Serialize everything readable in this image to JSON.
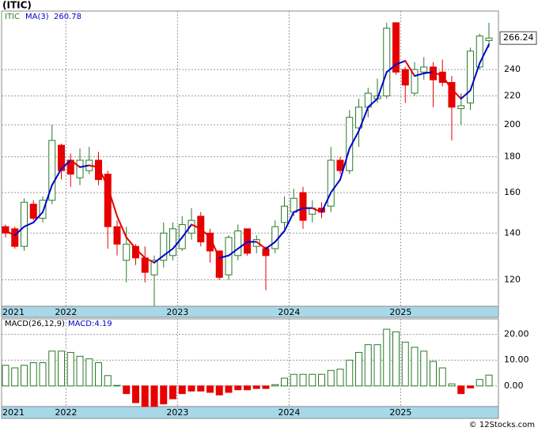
{
  "chart_data": [
    {
      "type": "candlestick",
      "title": "(ITIC)",
      "ticker": "ITIC",
      "ma_label": "MA(3)",
      "yscale": "log",
      "ylim": [
        110,
        291
      ],
      "yticks": [
        120,
        140,
        160,
        180,
        200,
        220,
        240
      ],
      "grid": true,
      "up_color": "#2a7a2a",
      "down_color": "#e60000",
      "ma_up_color": "#0000cc",
      "ma_down_color": "#e60000",
      "categories": [
        "2021",
        null,
        null,
        null,
        null,
        null,
        null,
        "2022",
        null,
        null,
        null,
        null,
        null,
        null,
        null,
        null,
        null,
        null,
        null,
        "2023",
        null,
        null,
        null,
        null,
        null,
        null,
        null,
        null,
        null,
        null,
        null,
        "2024",
        null,
        null,
        null,
        null,
        null,
        null,
        null,
        null,
        null,
        null,
        null,
        "2025",
        null,
        null,
        null,
        null,
        null,
        null,
        null,
        null,
        null
      ],
      "open": [
        143,
        142,
        134,
        154,
        147,
        156,
        187,
        178,
        168,
        172,
        178,
        170,
        143,
        128,
        134,
        129,
        122,
        128,
        130,
        133,
        140,
        148,
        140,
        132,
        122,
        130,
        142,
        134,
        133,
        133,
        145,
        150,
        160,
        149,
        152,
        153,
        178,
        172,
        198,
        212,
        218,
        220,
        280,
        240,
        222,
        238,
        242,
        238,
        230,
        211,
        215,
        242,
        264
      ],
      "high": [
        144,
        143,
        157,
        156,
        158,
        200,
        188,
        182,
        185,
        186,
        183,
        172,
        146,
        143,
        135,
        134,
        130,
        145,
        145,
        148,
        152,
        150,
        142,
        132,
        139,
        144,
        142,
        139,
        134,
        146,
        158,
        162,
        163,
        156,
        155,
        186,
        180,
        210,
        218,
        226,
        233,
        280,
        280,
        242,
        246,
        250,
        246,
        248,
        235,
        222,
        258,
        270,
        280
      ],
      "low": [
        138,
        133,
        132,
        146,
        145,
        154,
        167,
        163,
        164,
        170,
        164,
        133,
        130,
        119,
        126,
        119,
        110,
        125,
        128,
        132,
        137,
        134,
        127,
        120,
        120,
        128,
        130,
        131,
        116,
        131,
        142,
        148,
        142,
        145,
        147,
        150,
        170,
        170,
        186,
        205,
        215,
        218,
        236,
        215,
        220,
        232,
        212,
        227,
        190,
        200,
        210,
        240,
        258
      ],
      "close": [
        140,
        134,
        155,
        147,
        156,
        190,
        172,
        170,
        178,
        178,
        167,
        143,
        135,
        135,
        129,
        123,
        128,
        140,
        142,
        144,
        146,
        136,
        132,
        121,
        138,
        141,
        131,
        137,
        130,
        143,
        153,
        157,
        146,
        152,
        150,
        178,
        172,
        205,
        212,
        222,
        220,
        275,
        238,
        228,
        240,
        242,
        232,
        230,
        212,
        213,
        255,
        268,
        266.24
      ],
      "ma": [
        141,
        139,
        143,
        145,
        150,
        164,
        173,
        178,
        174,
        175,
        174,
        163,
        148,
        138,
        133,
        129,
        127,
        130,
        133,
        138,
        144,
        142,
        138,
        129,
        130,
        133,
        136,
        136,
        133,
        136,
        141,
        150,
        152,
        152,
        150,
        160,
        167,
        185,
        196,
        212,
        218,
        238,
        244,
        247,
        235,
        237,
        238,
        235,
        225,
        218,
        224,
        245,
        260.78
      ]
    },
    {
      "type": "histogram-bar",
      "label": "MACD(26,12,9)",
      "value_prefix": "MACD:",
      "ylim": [
        -8,
        26
      ],
      "yticks": [
        {
          "value": 20,
          "label": "20.00"
        },
        {
          "value": 10,
          "label": "10.00"
        },
        {
          "value": 0,
          "label": "0.00"
        }
      ],
      "grid": true,
      "up_color": "#2a7a2a",
      "down_color": "#e60000",
      "values": [
        8,
        7,
        8,
        9,
        9,
        13.5,
        13.5,
        13,
        11.5,
        10.5,
        9,
        4,
        0.2,
        -3,
        -6.5,
        -8,
        -8,
        -7,
        -5,
        -3,
        -2,
        -2,
        -2.5,
        -3.5,
        -2.5,
        -1.5,
        -1.5,
        -1,
        -1,
        0.5,
        3,
        4.5,
        4.5,
        4.5,
        4.5,
        6,
        6.5,
        10,
        13,
        16,
        16,
        22,
        21,
        17,
        15,
        13.5,
        9.5,
        7,
        0.8,
        -3,
        -0.8,
        2.5,
        4.19
      ]
    }
  ],
  "footer": "© 12Stocks.com"
}
